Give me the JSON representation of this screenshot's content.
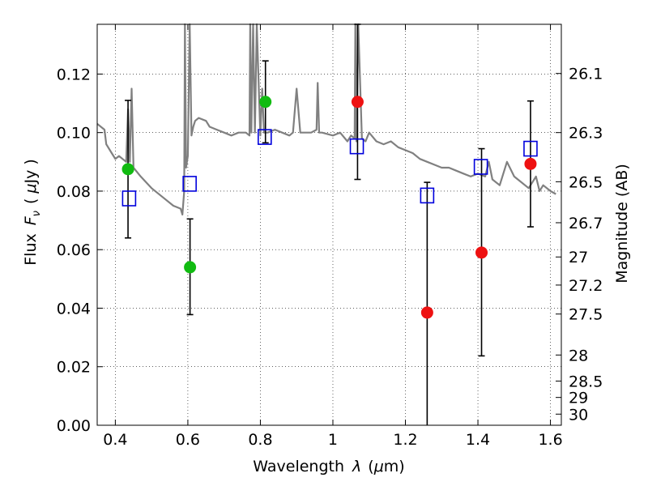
{
  "chart_data": {
    "type": "scatter",
    "xlabel_parts": [
      "Wavelength",
      "λ",
      "(",
      "μ",
      "m)"
    ],
    "ylabel_parts": [
      "Flux",
      "F",
      "ν",
      "(",
      "μ",
      "Jy",
      ")"
    ],
    "y2label": "Magnitude (AB)",
    "xlim": [
      0.35,
      1.63
    ],
    "ylim": [
      0.0,
      0.137
    ],
    "grid": true,
    "x_ticks": [
      {
        "value": 0.4,
        "label": "0.4"
      },
      {
        "value": 0.6,
        "label": "0.6"
      },
      {
        "value": 0.8,
        "label": "0.8"
      },
      {
        "value": 1.0,
        "label": "1"
      },
      {
        "value": 1.2,
        "label": "1.2"
      },
      {
        "value": 1.4,
        "label": "1.4"
      },
      {
        "value": 1.6,
        "label": "1.6"
      }
    ],
    "y_ticks": [
      {
        "value": 0.0,
        "label": "0.00"
      },
      {
        "value": 0.02,
        "label": "0.02"
      },
      {
        "value": 0.04,
        "label": "0.04"
      },
      {
        "value": 0.06,
        "label": "0.06"
      },
      {
        "value": 0.08,
        "label": "0.08"
      },
      {
        "value": 0.1,
        "label": "0.10"
      },
      {
        "value": 0.12,
        "label": "0.12"
      }
    ],
    "y2_ticks": [
      {
        "flux": 0.1202,
        "label": "26.1"
      },
      {
        "flux": 0.1,
        "label": "26.3"
      },
      {
        "flux": 0.0832,
        "label": "26.5"
      },
      {
        "flux": 0.0692,
        "label": "26.7"
      },
      {
        "flux": 0.0575,
        "label": "27"
      },
      {
        "flux": 0.0479,
        "label": "27.2"
      },
      {
        "flux": 0.038,
        "label": "27.5"
      },
      {
        "flux": 0.024,
        "label": "28"
      },
      {
        "flux": 0.0151,
        "label": "28.5"
      },
      {
        "flux": 0.0095,
        "label": "29"
      },
      {
        "flux": 0.0038,
        "label": "30"
      }
    ],
    "observed": {
      "colors": {
        "green": "#11bb11",
        "red": "#ee1111"
      },
      "points": [
        {
          "x": 0.435,
          "y": 0.0875,
          "err_lo": 0.064,
          "err_hi": 0.111,
          "color": "green"
        },
        {
          "x": 0.606,
          "y": 0.054,
          "err_lo": 0.0378,
          "err_hi": 0.0705,
          "color": "green"
        },
        {
          "x": 0.814,
          "y": 0.1105,
          "err_lo": 0.0965,
          "err_hi": 0.1245,
          "color": "green"
        },
        {
          "x": 1.068,
          "y": 0.1105,
          "err_lo": 0.084,
          "err_hi": 0.137,
          "color": "red"
        },
        {
          "x": 1.26,
          "y": 0.0385,
          "err_lo": 0.0,
          "err_hi": 0.083,
          "color": "red"
        },
        {
          "x": 1.41,
          "y": 0.059,
          "err_lo": 0.0237,
          "err_hi": 0.0945,
          "color": "red"
        },
        {
          "x": 1.545,
          "y": 0.0893,
          "err_lo": 0.0678,
          "err_hi": 0.1108,
          "color": "red"
        }
      ]
    },
    "model": {
      "color": "#0000dd",
      "points": [
        {
          "x": 0.438,
          "y": 0.0775
        },
        {
          "x": 0.605,
          "y": 0.0825
        },
        {
          "x": 0.812,
          "y": 0.0985
        },
        {
          "x": 1.066,
          "y": 0.0953
        },
        {
          "x": 1.26,
          "y": 0.0785
        },
        {
          "x": 1.408,
          "y": 0.0883
        },
        {
          "x": 1.545,
          "y": 0.0945
        }
      ]
    },
    "spectrum": {
      "color": "#808080",
      "x": [
        0.35,
        0.37,
        0.375,
        0.39,
        0.4,
        0.41,
        0.42,
        0.43,
        0.435,
        0.44,
        0.445,
        0.45,
        0.47,
        0.5,
        0.53,
        0.56,
        0.58,
        0.585,
        0.59,
        0.592,
        0.595,
        0.6,
        0.605,
        0.61,
        0.615,
        0.62,
        0.63,
        0.65,
        0.66,
        0.68,
        0.7,
        0.72,
        0.74,
        0.76,
        0.77,
        0.772,
        0.775,
        0.78,
        0.785,
        0.79,
        0.8,
        0.805,
        0.81,
        0.82,
        0.84,
        0.86,
        0.88,
        0.89,
        0.9,
        0.91,
        0.92,
        0.94,
        0.955,
        0.958,
        0.962,
        0.97,
        1.0,
        1.02,
        1.04,
        1.05,
        1.06,
        1.062,
        1.065,
        1.07,
        1.08,
        1.09,
        1.1,
        1.12,
        1.14,
        1.16,
        1.18,
        1.2,
        1.22,
        1.24,
        1.26,
        1.28,
        1.3,
        1.32,
        1.34,
        1.36,
        1.38,
        1.4,
        1.42,
        1.43,
        1.44,
        1.46,
        1.48,
        1.5,
        1.52,
        1.54,
        1.56,
        1.57,
        1.58,
        1.6,
        1.615
      ],
      "y": [
        0.103,
        0.101,
        0.096,
        0.093,
        0.091,
        0.092,
        0.091,
        0.09,
        0.108,
        0.09,
        0.115,
        0.088,
        0.085,
        0.081,
        0.078,
        0.075,
        0.074,
        0.072,
        0.08,
        0.137,
        0.088,
        0.092,
        0.137,
        0.099,
        0.102,
        0.104,
        0.105,
        0.104,
        0.102,
        0.101,
        0.1,
        0.099,
        0.1,
        0.1,
        0.099,
        0.137,
        0.1,
        0.137,
        0.1,
        0.137,
        0.099,
        0.115,
        0.1,
        0.1,
        0.101,
        0.1,
        0.099,
        0.1,
        0.115,
        0.1,
        0.1,
        0.1,
        0.101,
        0.117,
        0.1,
        0.1,
        0.099,
        0.1,
        0.097,
        0.099,
        0.098,
        0.137,
        0.097,
        0.137,
        0.098,
        0.097,
        0.1,
        0.097,
        0.096,
        0.097,
        0.095,
        0.094,
        0.093,
        0.091,
        0.09,
        0.089,
        0.088,
        0.088,
        0.087,
        0.086,
        0.085,
        0.086,
        0.085,
        0.09,
        0.084,
        0.082,
        0.09,
        0.085,
        0.083,
        0.081,
        0.085,
        0.08,
        0.082,
        0.08,
        0.079
      ]
    }
  }
}
